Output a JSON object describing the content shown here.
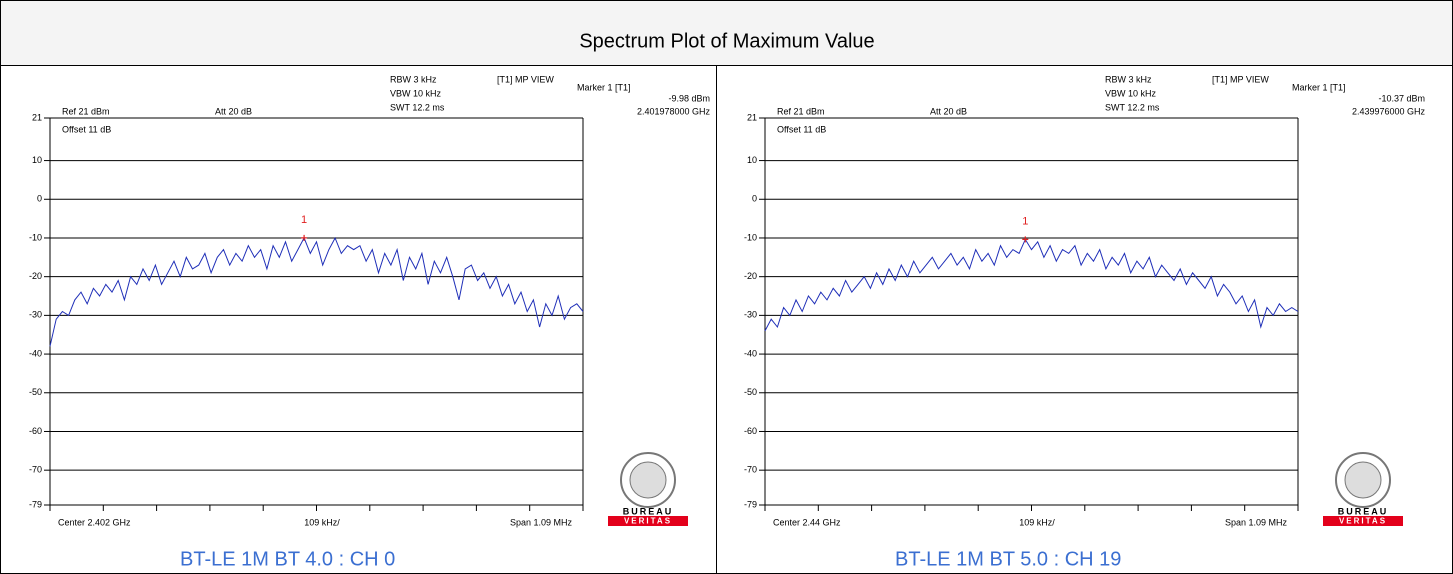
{
  "title": "Spectrum Plot of Maximum Value",
  "chart_data": [
    {
      "type": "line",
      "caption": "BT-LE 1M BT 4.0 : CH 0",
      "ref": "Ref 21 dBm",
      "att": "Att 20 dB",
      "rbw": "RBW 3 kHz",
      "vbw": "VBW 10 kHz",
      "swt": "SWT 12.2 ms",
      "mode": "[T1] MP VIEW",
      "offset": "Offset 11 dB",
      "center": "Center 2.402 GHz",
      "div": "109 kHz/",
      "span": "Span 1.09 MHz",
      "logo": {
        "top": "BUREAU",
        "bottom": "VERITAS"
      },
      "color": "#1f2fb8",
      "ylim": [
        -79,
        21
      ],
      "yticks": [
        21,
        10,
        0,
        -10,
        -20,
        -30,
        -40,
        -50,
        -60,
        -70,
        -79
      ],
      "marker": {
        "name": "Marker 1 [T1]",
        "number": "1",
        "index": 41,
        "value": -9.98,
        "value_label": "-9.98 dBm",
        "frequency": "2.401978000 GHz"
      },
      "values": [
        -38,
        -31,
        -29,
        -30,
        -26,
        -24,
        -27,
        -23,
        -25,
        -22,
        -24,
        -21,
        -26,
        -20,
        -22,
        -18,
        -21,
        -17,
        -22,
        -19,
        -16,
        -20,
        -15,
        -18,
        -17,
        -14,
        -19,
        -15,
        -13,
        -17,
        -14,
        -16,
        -12,
        -15,
        -13,
        -18,
        -12,
        -15,
        -11,
        -16,
        -13,
        -9.98,
        -14,
        -11,
        -17,
        -13,
        -10,
        -14,
        -12,
        -13,
        -12,
        -16,
        -13,
        -19,
        -14,
        -17,
        -13,
        -21,
        -15,
        -18,
        -14,
        -22,
        -16,
        -19,
        -15,
        -20,
        -26,
        -18,
        -17,
        -21,
        -19,
        -23,
        -20,
        -25,
        -22,
        -27,
        -24,
        -29,
        -26,
        -33,
        -27,
        -30,
        -25,
        -31,
        -28,
        -27,
        -29
      ]
    },
    {
      "type": "line",
      "caption": "BT-LE 1M BT 5.0 : CH 19",
      "ref": "Ref 21 dBm",
      "att": "Att 20 dB",
      "rbw": "RBW 3 kHz",
      "vbw": "VBW 10 kHz",
      "swt": "SWT 12.2 ms",
      "mode": "[T1] MP VIEW",
      "offset": "Offset 11 dB",
      "center": "Center 2.44 GHz",
      "div": "109 kHz/",
      "span": "Span 1.09 MHz",
      "logo": {
        "top": "BUREAU",
        "bottom": "VERITAS"
      },
      "color": "#1f2fb8",
      "ylim": [
        -79,
        21
      ],
      "yticks": [
        21,
        10,
        0,
        -10,
        -20,
        -30,
        -40,
        -50,
        -60,
        -70,
        -79
      ],
      "marker": {
        "name": "Marker 1 [T1]",
        "number": "1",
        "index": 42,
        "value": -10.37,
        "value_label": "-10.37 dBm",
        "frequency": "2.439976000 GHz"
      },
      "values": [
        -34,
        -31,
        -33,
        -28,
        -30,
        -26,
        -29,
        -25,
        -27,
        -24,
        -26,
        -23,
        -25,
        -21,
        -24,
        -22,
        -20,
        -23,
        -19,
        -22,
        -18,
        -21,
        -17,
        -20,
        -16,
        -19,
        -17,
        -15,
        -18,
        -16,
        -14,
        -17,
        -15,
        -18,
        -13,
        -16,
        -14,
        -17,
        -12,
        -15,
        -13,
        -14,
        -10.37,
        -13,
        -11,
        -15,
        -12,
        -16,
        -13,
        -14,
        -12,
        -17,
        -14,
        -16,
        -13,
        -18,
        -15,
        -17,
        -14,
        -19,
        -16,
        -18,
        -15,
        -20,
        -17,
        -19,
        -21,
        -18,
        -22,
        -19,
        -21,
        -23,
        -20,
        -25,
        -22,
        -24,
        -27,
        -25,
        -29,
        -26,
        -33,
        -28,
        -30,
        -27,
        -29,
        -28,
        -29
      ]
    }
  ]
}
